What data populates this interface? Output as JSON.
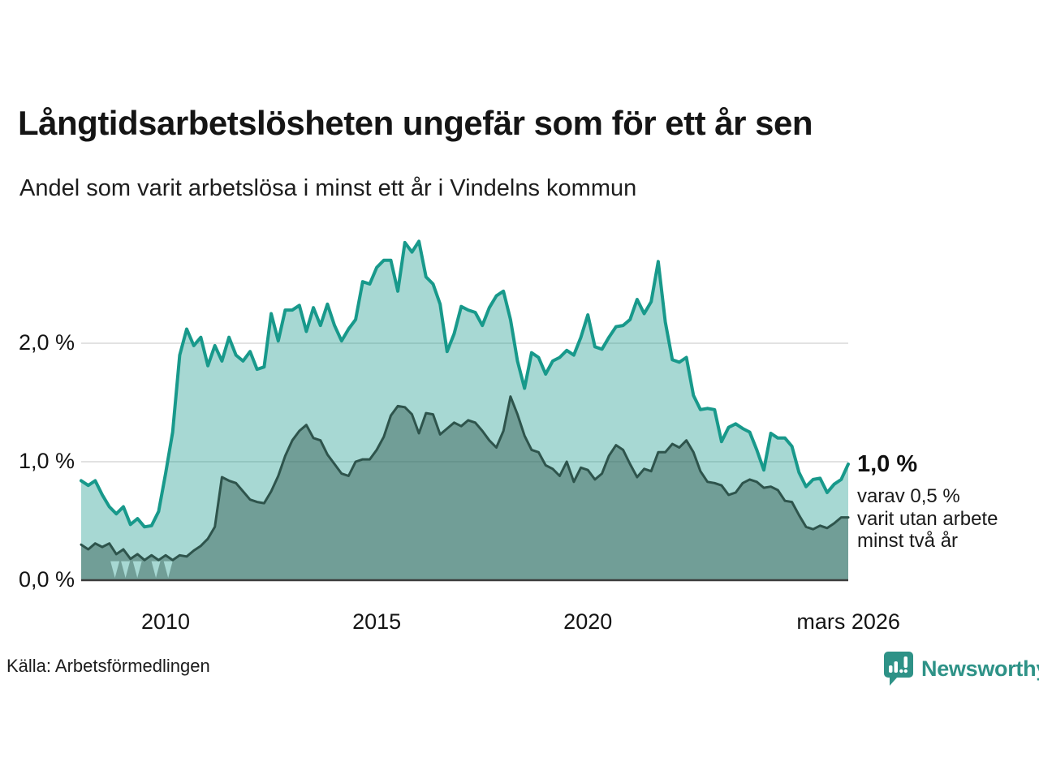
{
  "header": {
    "title": "Långtidsarbetslösheten ungefär som för ett år sen",
    "subtitle": "Andel som varit arbetslösa i minst ett år i Vindelns kommun"
  },
  "footer": {
    "source": "Källa: Arbetsförmedlingen",
    "brand": "Newsworthy"
  },
  "colors": {
    "accent_teal": "#18998b",
    "dark_series": "#2e544c",
    "light_fill": "rgba(24,153,139,0.38)",
    "dark_fill": "rgba(46,84,76,0.44)",
    "notch_fill": "#a7d8d3",
    "gridline": "#d8d8d8",
    "baseline": "#3c3c3c",
    "brand_teal": "#2e9287"
  },
  "chart_data": {
    "type": "area",
    "title": "Långtidsarbetslösheten ungefär som för ett år sen",
    "subtitle": "Andel som varit arbetslösa i minst ett år i Vindelns kommun",
    "xlabel": "",
    "ylabel": "",
    "ylim": [
      0,
      3.0
    ],
    "grid": "horizontal",
    "legend_position": "none",
    "x_start": 2008.0,
    "x_step_years": 0.166667,
    "x_ticks": [
      {
        "label": "2010",
        "year": 2010
      },
      {
        "label": "2015",
        "year": 2015
      },
      {
        "label": "2020",
        "year": 2020
      },
      {
        "label": "mars 2026",
        "year": 2026.17
      }
    ],
    "y_ticks": [
      {
        "label": "0,0 %",
        "value": 0
      },
      {
        "label": "1,0 %",
        "value": 1
      },
      {
        "label": "2,0 %",
        "value": 2
      }
    ],
    "series": [
      {
        "name": "Arbetslösa minst ett år",
        "line_color": "#18998b",
        "fill_color": "rgba(24,153,139,0.38)",
        "values": [
          0.84,
          0.8,
          0.84,
          0.72,
          0.62,
          0.56,
          0.62,
          0.47,
          0.52,
          0.45,
          0.46,
          0.58,
          0.9,
          1.25,
          1.9,
          2.12,
          1.98,
          2.05,
          1.81,
          1.98,
          1.85,
          2.05,
          1.9,
          1.85,
          1.93,
          1.78,
          1.8,
          2.25,
          2.02,
          2.28,
          2.28,
          2.32,
          2.1,
          2.3,
          2.15,
          2.33,
          2.15,
          2.02,
          2.12,
          2.2,
          2.52,
          2.5,
          2.64,
          2.7,
          2.7,
          2.44,
          2.85,
          2.77,
          2.86,
          2.56,
          2.5,
          2.33,
          1.93,
          2.08,
          2.31,
          2.28,
          2.26,
          2.15,
          2.3,
          2.4,
          2.44,
          2.2,
          1.85,
          1.62,
          1.92,
          1.88,
          1.74,
          1.85,
          1.88,
          1.94,
          1.9,
          2.05,
          2.24,
          1.97,
          1.95,
          2.05,
          2.14,
          2.15,
          2.2,
          2.37,
          2.25,
          2.35,
          2.69,
          2.18,
          1.86,
          1.84,
          1.88,
          1.56,
          1.44,
          1.45,
          1.44,
          1.17,
          1.29,
          1.32,
          1.28,
          1.25,
          1.1,
          0.93,
          1.24,
          1.2,
          1.2,
          1.13,
          0.91,
          0.79,
          0.85,
          0.86,
          0.74,
          0.81,
          0.85,
          0.98
        ]
      },
      {
        "name": "Arbetslösa minst två år",
        "line_color": "#2e544c",
        "fill_color": "rgba(46,84,76,0.44)",
        "values": [
          0.3,
          0.26,
          0.31,
          0.28,
          0.31,
          0.22,
          0.26,
          0.18,
          0.22,
          0.17,
          0.21,
          0.17,
          0.21,
          0.17,
          0.21,
          0.2,
          0.25,
          0.29,
          0.35,
          0.45,
          0.87,
          0.84,
          0.82,
          0.75,
          0.68,
          0.66,
          0.65,
          0.75,
          0.88,
          1.05,
          1.18,
          1.26,
          1.31,
          1.2,
          1.18,
          1.06,
          0.98,
          0.9,
          0.88,
          1.0,
          1.02,
          1.02,
          1.1,
          1.21,
          1.39,
          1.47,
          1.46,
          1.4,
          1.24,
          1.41,
          1.4,
          1.23,
          1.28,
          1.33,
          1.3,
          1.35,
          1.33,
          1.26,
          1.18,
          1.12,
          1.26,
          1.55,
          1.4,
          1.22,
          1.1,
          1.08,
          0.97,
          0.94,
          0.88,
          1.0,
          0.83,
          0.95,
          0.93,
          0.85,
          0.9,
          1.05,
          1.14,
          1.1,
          0.98,
          0.87,
          0.94,
          0.92,
          1.08,
          1.08,
          1.15,
          1.12,
          1.18,
          1.08,
          0.92,
          0.83,
          0.82,
          0.8,
          0.72,
          0.74,
          0.82,
          0.85,
          0.83,
          0.78,
          0.79,
          0.76,
          0.67,
          0.66,
          0.55,
          0.45,
          0.43,
          0.46,
          0.44,
          0.48,
          0.53,
          0.53
        ]
      }
    ],
    "notch_years": [
      2008.8,
      2009.05,
      2009.33,
      2009.77,
      2010.06
    ],
    "end_labels": {
      "primary": "1,0 %",
      "secondary_lines": [
        "varav 0,5 %",
        "varit utan arbete",
        "minst två år"
      ]
    }
  }
}
